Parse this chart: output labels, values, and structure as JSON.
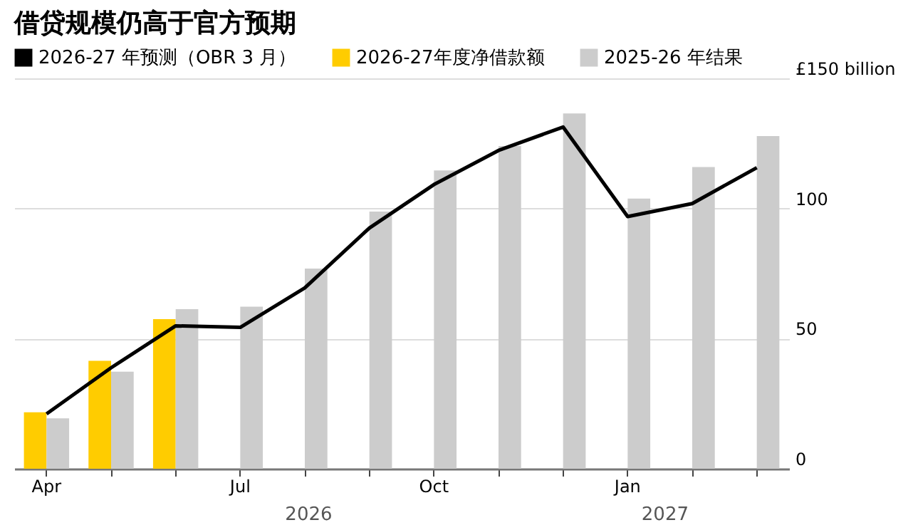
{
  "chart_data": {
    "type": "bar",
    "title": "借贷规模仍高于官方预期",
    "categories": [
      "Apr",
      null,
      null,
      "Jul",
      null,
      null,
      "Oct",
      null,
      null,
      "Jan",
      null,
      null
    ],
    "series": [
      {
        "name": "2026-27 年预测（OBR 3 月）",
        "type": "line",
        "color": "#000000",
        "values": [
          21.1,
          38.8,
          54.9,
          54.3,
          69.5,
          92.5,
          109.2,
          122.3,
          131.3,
          96.9,
          101.9,
          115.7
        ]
      },
      {
        "name": "2026-27年度净借款额",
        "color": "#ffcc00",
        "values": [
          21.7,
          41.5,
          57.5,
          null,
          null,
          null,
          null,
          null,
          null,
          null,
          null,
          null
        ]
      },
      {
        "name": "2025-26 年结果",
        "color": "#cccccc",
        "values": [
          19.4,
          37.3,
          61.3,
          62.3,
          76.9,
          98.8,
          114.6,
          124,
          136.5,
          103.8,
          115.9,
          127.8
        ]
      }
    ],
    "ylim": [
      0,
      150
    ],
    "yticks": [
      0,
      50,
      100,
      {
        "value": 150,
        "label": "£150 billion"
      }
    ],
    "grid": "y",
    "legend": "top",
    "marker": "none",
    "annotations": [
      "2026",
      "2027"
    ]
  }
}
